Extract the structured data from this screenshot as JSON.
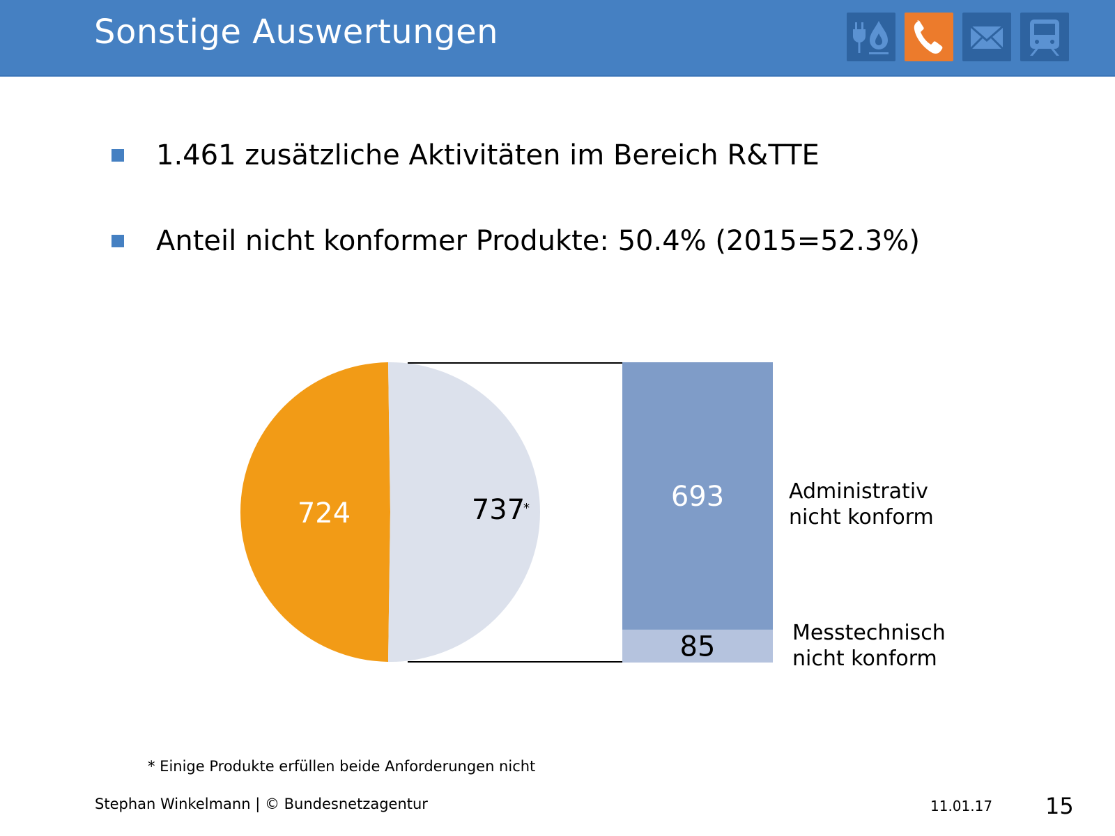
{
  "header": {
    "title": "Sonstige Auswertungen",
    "icons": [
      {
        "name": "energy-icon",
        "label": "plug and flame",
        "active": false
      },
      {
        "name": "phone-icon",
        "label": "telephone",
        "active": true
      },
      {
        "name": "mail-icon",
        "label": "envelope",
        "active": false
      },
      {
        "name": "train-icon",
        "label": "train",
        "active": false
      }
    ],
    "colors": {
      "bar": "#4580c2",
      "tile": "#2e63a0",
      "active_tile": "#ec7b2c"
    }
  },
  "bullets": [
    {
      "text": "1.461 zusätzliche Aktivitäten im Bereich R&TTE"
    },
    {
      "text": "Anteil nicht konformer Produkte: 50.4% (2015=52.3%)"
    }
  ],
  "chart_data": {
    "type": "pie",
    "subtype": "bar-of-pie",
    "title": "",
    "pie": {
      "slices": [
        {
          "label": "724",
          "value": 724,
          "color": "#f29b16",
          "text_color": "#ffffff"
        },
        {
          "label": "737",
          "suffix": "*",
          "value": 737,
          "color": "#dce1ec",
          "text_color": "#000000"
        }
      ],
      "total": 1461
    },
    "bar": {
      "type": "bar",
      "stacked": true,
      "segments": [
        {
          "label": "693",
          "value": 693,
          "category": "Administrativ nicht konform",
          "legend_lines": [
            "Administrativ",
            "nicht konform"
          ],
          "color": "#7f9cc8",
          "text_color": "#ffffff"
        },
        {
          "label": "85",
          "value": 85,
          "category": "Messtechnisch nicht konform",
          "legend_lines": [
            "Messtechnisch",
            "nicht konform"
          ],
          "color": "#b5c3de",
          "text_color": "#000000"
        }
      ]
    },
    "connector_color": "#000000"
  },
  "footnote": "* Einige Produkte erfüllen beide Anforderungen nicht",
  "footer": {
    "author": "Stephan Winkelmann | © Bundesnetzagentur",
    "date": "11.01.17",
    "page": "15"
  }
}
